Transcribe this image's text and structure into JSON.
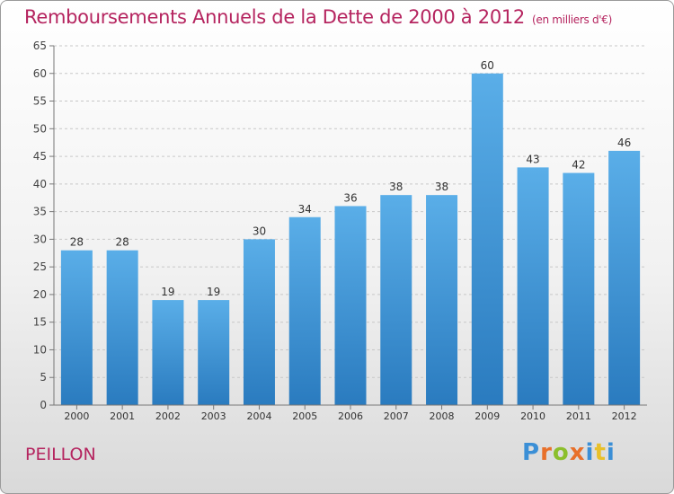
{
  "header": {
    "title": "Remboursements Annuels de la Dette de 2000 à 2012",
    "unit": "(en milliers d'€)"
  },
  "footer": {
    "commune": "PEILLON",
    "logo": {
      "letters": [
        "P",
        "r",
        "o",
        "x",
        "i",
        "t",
        "i"
      ],
      "colors": [
        "#3b8fd6",
        "#e8702a",
        "#8cbf2c",
        "#e8702a",
        "#3b8fd6",
        "#e8c02a",
        "#3b8fd6"
      ]
    }
  },
  "chart_data": {
    "type": "bar",
    "categories": [
      "2000",
      "2001",
      "2002",
      "2003",
      "2004",
      "2005",
      "2006",
      "2007",
      "2008",
      "2009",
      "2010",
      "2011",
      "2012"
    ],
    "values": [
      28,
      28,
      19,
      19,
      30,
      34,
      36,
      38,
      38,
      60,
      43,
      42,
      46
    ],
    "ylim": [
      0,
      65
    ],
    "yticks": [
      0,
      5,
      10,
      15,
      20,
      25,
      30,
      35,
      40,
      45,
      50,
      55,
      60,
      65
    ],
    "grid": true,
    "bar_color_top": "#5aaee8",
    "bar_color_bottom": "#2a7bbf",
    "title_color": "#b5245f"
  }
}
